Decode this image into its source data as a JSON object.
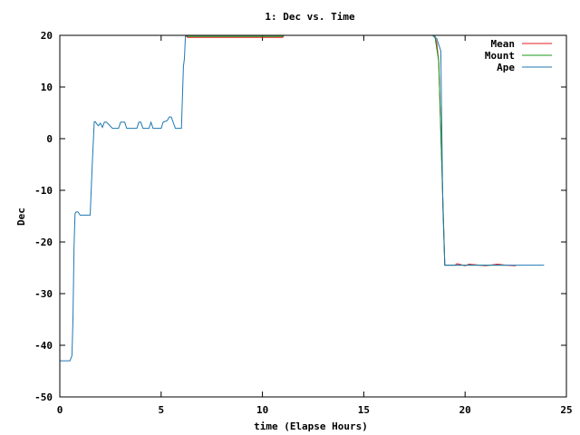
{
  "chart_data": {
    "type": "line",
    "title": "1: Dec vs. Time",
    "xlabel": "time (Elapse Hours)",
    "ylabel": "Dec",
    "xlim": [
      0,
      25
    ],
    "ylim": [
      -50,
      20
    ],
    "xticks": [
      0,
      5,
      10,
      15,
      20,
      25
    ],
    "yticks": [
      -50,
      -40,
      -30,
      -20,
      -10,
      0,
      10,
      20
    ],
    "grid": false,
    "legend_position": "top-right",
    "series": [
      {
        "name": "Mean",
        "color": "#e41a1c",
        "x": [
          6.2,
          6.3,
          11.0,
          11.05,
          18.5,
          18.6,
          18.7,
          19.0,
          19.5,
          19.6,
          20.0,
          20.2,
          21.0,
          21.6,
          22.0,
          22.5
        ],
        "y": [
          20,
          19.6,
          19.6,
          20,
          20,
          18.5,
          15,
          -24.5,
          -24.5,
          -24.2,
          -24.6,
          -24.3,
          -24.6,
          -24.3,
          -24.5,
          -24.6
        ]
      },
      {
        "name": "Mount",
        "color": "#1a9a1a",
        "x": [
          6.2,
          6.3,
          11.0,
          11.05,
          18.5,
          18.7,
          19.0,
          20.0,
          22.0
        ],
        "y": [
          20,
          19.8,
          19.8,
          20,
          20,
          15,
          -24.5,
          -24.5,
          -24.5
        ]
      },
      {
        "name": "Ape",
        "color": "#1f78b4",
        "x": [
          -0.1,
          0.5,
          0.6,
          0.65,
          0.7,
          0.75,
          0.8,
          0.9,
          1.0,
          1.1,
          1.5,
          1.6,
          1.7,
          1.75,
          1.8,
          1.9,
          2.0,
          2.1,
          2.2,
          2.3,
          2.4,
          2.6,
          2.8,
          2.9,
          3.0,
          3.2,
          3.3,
          3.4,
          3.5,
          3.8,
          3.9,
          4.0,
          4.1,
          4.3,
          4.4,
          4.5,
          4.6,
          5.0,
          5.1,
          5.3,
          5.4,
          5.5,
          5.7,
          5.8,
          6.0,
          6.05,
          6.1,
          6.15,
          6.2,
          6.3,
          10.0,
          15.0,
          18.4,
          18.5,
          18.6,
          18.7,
          18.8,
          18.9,
          19.0,
          19.5,
          20.0,
          21.0,
          22.0,
          23.0,
          23.9
        ],
        "y": [
          -43,
          -43,
          -42,
          -35,
          -21,
          -14.5,
          -14.2,
          -14.2,
          -14.8,
          -14.8,
          -14.8,
          -5,
          3.3,
          3.3,
          3.0,
          2.5,
          3.0,
          2.2,
          3.2,
          3.2,
          2.8,
          2.0,
          2.0,
          2.0,
          3.2,
          3.2,
          2.0,
          2.0,
          2.0,
          2.0,
          3.2,
          3.2,
          2.0,
          2.0,
          2.0,
          3.2,
          2.0,
          2.0,
          3.2,
          3.5,
          4.2,
          4.2,
          2.0,
          2.0,
          2.0,
          8,
          14,
          15.5,
          19.8,
          20,
          20,
          20,
          20,
          19.6,
          19.4,
          18.2,
          17,
          -13,
          -24.5,
          -24.5,
          -24.5,
          -24.5,
          -24.5,
          -24.5,
          -24.5
        ]
      }
    ]
  }
}
